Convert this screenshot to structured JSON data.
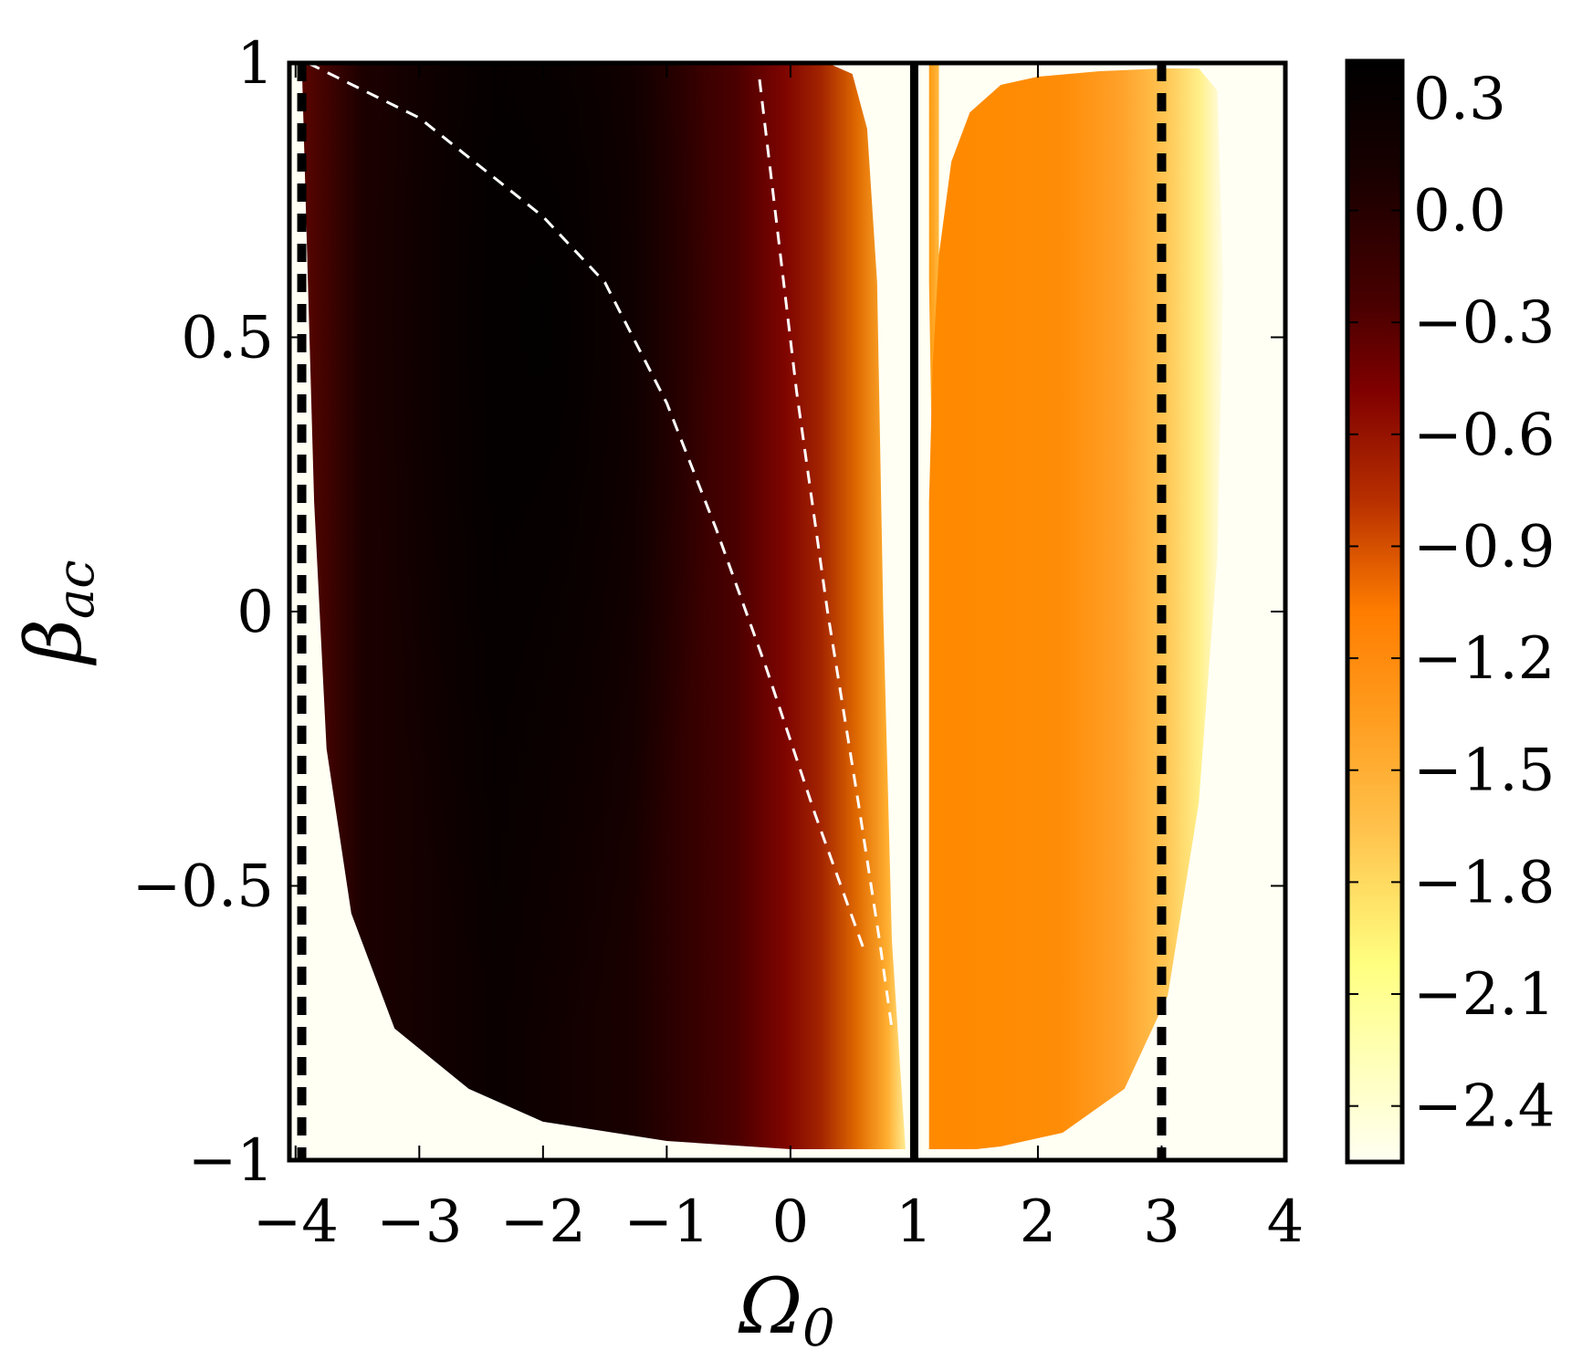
{
  "chart_data": {
    "type": "heatmap",
    "xlabel_main": "Ω",
    "xlabel_sub": "0",
    "ylabel_main": "β",
    "ylabel_sub": "ac",
    "xlim": [
      -4.05,
      4.0
    ],
    "ylim": [
      -1.0,
      1.0
    ],
    "xticks": [
      -4,
      -3,
      -2,
      -1,
      0,
      1,
      2,
      3,
      4
    ],
    "xtick_labels": [
      "−4",
      "−3",
      "−2",
      "−1",
      "0",
      "1",
      "2",
      "3",
      "4"
    ],
    "yticks": [
      -1,
      -0.5,
      0,
      0.5,
      1
    ],
    "ytick_labels": [
      "−1",
      "−0.5",
      "0",
      "0.5",
      "1"
    ],
    "colorbar": {
      "range": [
        -2.55,
        0.4
      ],
      "ticks": [
        0.3,
        0.0,
        -0.3,
        -0.6,
        -0.9,
        -1.2,
        -1.5,
        -1.8,
        -2.1,
        -2.4
      ],
      "tick_labels": [
        "0.3",
        "0.0",
        "−0.3",
        "−0.6",
        "−0.9",
        "−1.2",
        "−1.5",
        "−1.8",
        "−2.1",
        "−2.4"
      ],
      "colormap": "afmhot_r",
      "colors": [
        "#fffff2",
        "#ffff80",
        "#ffc24d",
        "#ff8000",
        "#c24000",
        "#800000",
        "#400000",
        "#000000"
      ]
    },
    "lines": [
      {
        "style": "dotted-vertical",
        "x": -3.95,
        "color": "#000000"
      },
      {
        "style": "solid-vertical",
        "x": 1.0,
        "color": "#000000"
      },
      {
        "style": "dotted-vertical",
        "x": 3.0,
        "color": "#000000"
      },
      {
        "style": "dashed-curve",
        "color": "#ffffff",
        "points": [
          [
            -3.9,
            1.0
          ],
          [
            -3.0,
            0.9
          ],
          [
            -2.0,
            0.72
          ],
          [
            -1.5,
            0.6
          ],
          [
            -1.0,
            0.38
          ],
          [
            -0.6,
            0.15
          ],
          [
            -0.2,
            -0.1
          ],
          [
            0.2,
            -0.37
          ],
          [
            0.6,
            -0.62
          ]
        ]
      },
      {
        "style": "dashed-curve",
        "color": "#ffffff",
        "points": [
          [
            -0.25,
            0.97
          ],
          [
            -0.15,
            0.78
          ],
          [
            0.05,
            0.4
          ],
          [
            0.3,
            0.0
          ],
          [
            0.55,
            -0.35
          ],
          [
            0.72,
            -0.6
          ],
          [
            0.82,
            -0.76
          ]
        ]
      }
    ]
  }
}
